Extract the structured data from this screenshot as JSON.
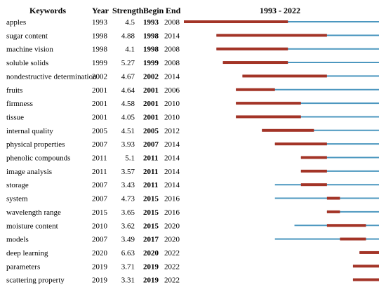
{
  "colors": {
    "baseline": "#4c97bf",
    "burst": "#a33427",
    "text": "#111111"
  },
  "chart_data": {
    "type": "table",
    "span_label": "1993 - 2022",
    "range": [
      1993,
      2022
    ],
    "headers": {
      "keywords": "Keywords",
      "year": "Year",
      "strength": "Strength",
      "begin": "Begin",
      "end": "End"
    },
    "rows": [
      {
        "keyword": "apples",
        "year": "1993",
        "strength": "4.5",
        "begin": "1993",
        "end": "2008"
      },
      {
        "keyword": "sugar content",
        "year": "1998",
        "strength": "4.88",
        "begin": "1998",
        "end": "2014"
      },
      {
        "keyword": "machine vision",
        "year": "1998",
        "strength": "4.1",
        "begin": "1998",
        "end": "2008"
      },
      {
        "keyword": "soluble solids",
        "year": "1999",
        "strength": "5.27",
        "begin": "1999",
        "end": "2008"
      },
      {
        "keyword": "nondestructive determination",
        "year": "2002",
        "strength": "4.67",
        "begin": "2002",
        "end": "2014"
      },
      {
        "keyword": "fruits",
        "year": "2001",
        "strength": "4.64",
        "begin": "2001",
        "end": "2006"
      },
      {
        "keyword": "firmness",
        "year": "2001",
        "strength": "4.58",
        "begin": "2001",
        "end": "2010"
      },
      {
        "keyword": "tissue",
        "year": "2001",
        "strength": "4.05",
        "begin": "2001",
        "end": "2010"
      },
      {
        "keyword": "internal quality",
        "year": "2005",
        "strength": "4.51",
        "begin": "2005",
        "end": "2012"
      },
      {
        "keyword": "physical properties",
        "year": "2007",
        "strength": "3.93",
        "begin": "2007",
        "end": "2014"
      },
      {
        "keyword": "phenolic compounds",
        "year": "2011",
        "strength": "5.1",
        "begin": "2011",
        "end": "2014"
      },
      {
        "keyword": "image analysis",
        "year": "2011",
        "strength": "3.57",
        "begin": "2011",
        "end": "2014"
      },
      {
        "keyword": "storage",
        "year": "2007",
        "strength": "3.43",
        "begin": "2011",
        "end": "2014"
      },
      {
        "keyword": "system",
        "year": "2007",
        "strength": "4.73",
        "begin": "2015",
        "end": "2016"
      },
      {
        "keyword": "wavelength range",
        "year": "2015",
        "strength": "3.65",
        "begin": "2015",
        "end": "2016"
      },
      {
        "keyword": "moisture content",
        "year": "2010",
        "strength": "3.62",
        "begin": "2015",
        "end": "2020"
      },
      {
        "keyword": "models",
        "year": "2007",
        "strength": "3.49",
        "begin": "2017",
        "end": "2020"
      },
      {
        "keyword": "deep learning",
        "year": "2020",
        "strength": "6.63",
        "begin": "2020",
        "end": "2022"
      },
      {
        "keyword": "parameters",
        "year": "2019",
        "strength": "3.71",
        "begin": "2019",
        "end": "2022"
      },
      {
        "keyword": "scattering property",
        "year": "2019",
        "strength": "3.31",
        "begin": "2019",
        "end": "2022"
      }
    ]
  }
}
